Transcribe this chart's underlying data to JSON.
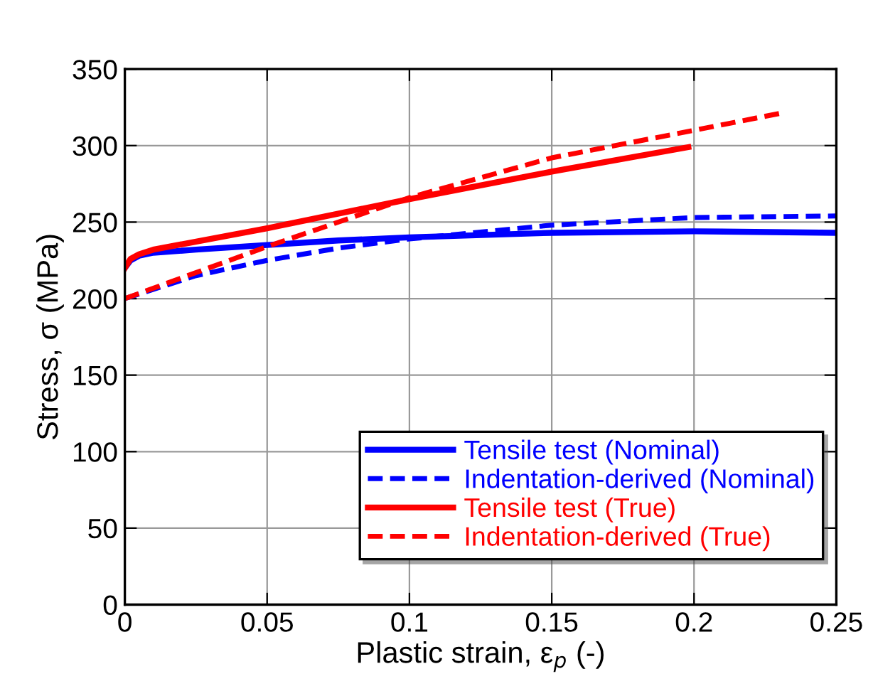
{
  "chart_data": {
    "type": "line",
    "xlabel": "Plastic strain, ε$_{p}$ (-)",
    "ylabel": "Stress, σ (MPa)",
    "xlim": [
      0,
      0.25
    ],
    "ylim": [
      0,
      350
    ],
    "xticks": [
      0,
      0.05,
      0.1,
      0.15,
      0.2,
      0.25
    ],
    "yticks": [
      0,
      50,
      100,
      150,
      200,
      250,
      300,
      350
    ],
    "grid": true,
    "legend": "bottom right",
    "marker": "none",
    "series": [
      {
        "name": "Tensile test (Nominal)",
        "color": "#0000ff",
        "line_style": "solid",
        "x": [
          0,
          0.002,
          0.005,
          0.01,
          0.025,
          0.05,
          0.075,
          0.1,
          0.15,
          0.2,
          0.25
        ],
        "values": [
          220,
          225,
          228,
          230,
          232,
          235,
          238,
          240,
          243,
          244,
          243
        ]
      },
      {
        "name": "Indentation-derived (Nominal)",
        "color": "#0000ff",
        "line_style": "dashed",
        "x": [
          0,
          0.025,
          0.05,
          0.075,
          0.1,
          0.15,
          0.2,
          0.25
        ],
        "values": [
          200,
          215,
          225,
          233,
          239,
          248,
          253,
          254
        ]
      },
      {
        "name": "Tensile test (True)",
        "color": "#ff0000",
        "line_style": "solid",
        "x": [
          0,
          0.002,
          0.005,
          0.01,
          0.05,
          0.1,
          0.15,
          0.198
        ],
        "values": [
          220,
          226,
          229,
          232,
          246,
          265,
          283,
          299
        ]
      },
      {
        "name": "Indentation-derived (True)",
        "color": "#ff0000",
        "line_style": "dashed",
        "x": [
          0,
          0.05,
          0.1,
          0.15,
          0.2,
          0.23
        ],
        "values": [
          200,
          234,
          266,
          292,
          310,
          321
        ]
      }
    ]
  }
}
